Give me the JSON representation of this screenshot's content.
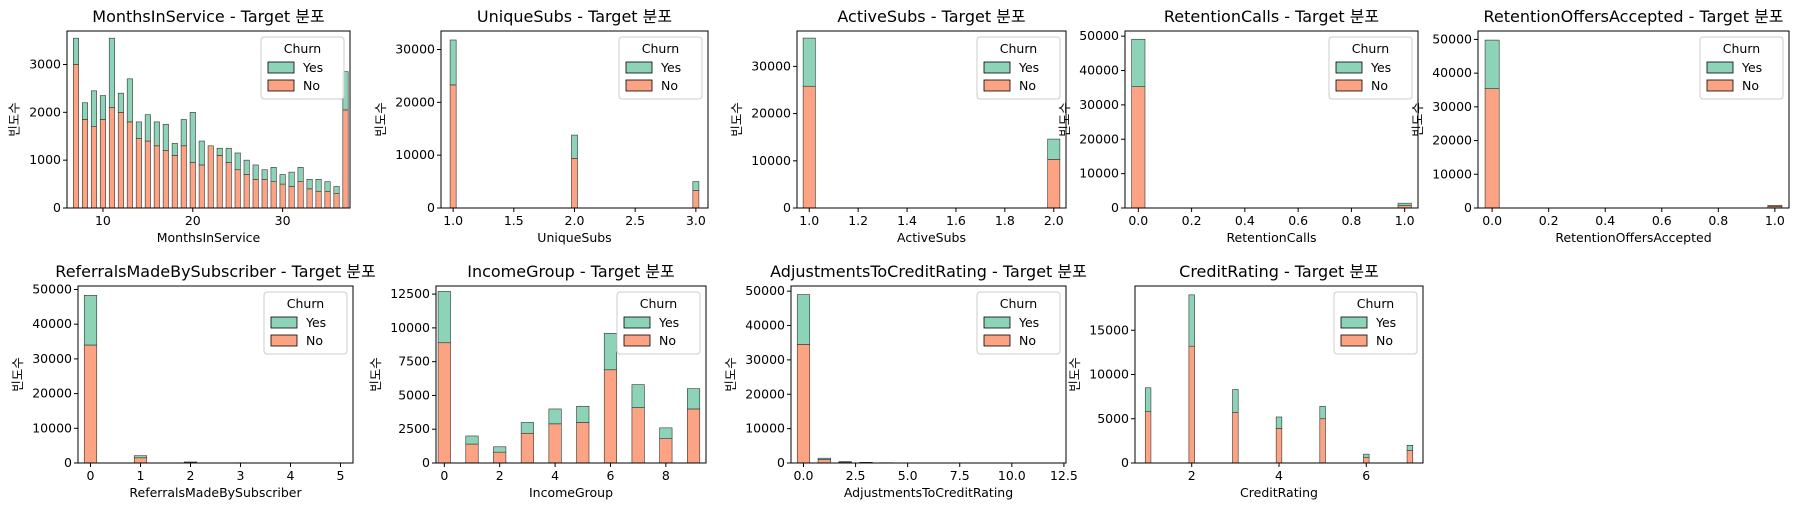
{
  "legend": {
    "title": "Churn",
    "entries": [
      "Yes",
      "No"
    ]
  },
  "colors": {
    "Yes": "#8dd3b8",
    "No": "#fca383"
  },
  "chart_data": [
    {
      "type": "bar",
      "stacked": true,
      "title": "MonthsInService - Target 분포",
      "xlabel": "MonthsInService",
      "ylabel": "빈도수",
      "xlim": [
        6,
        37.5
      ],
      "ylim": [
        0,
        3700
      ],
      "xticks": [
        10,
        20,
        30
      ],
      "yticks": [
        0,
        1000,
        2000,
        3000
      ],
      "bin_width": 0.6,
      "x": [
        7,
        8,
        9,
        10,
        11,
        12,
        13,
        14,
        15,
        16,
        17,
        18,
        19,
        20,
        21,
        22,
        23,
        24,
        25,
        26,
        27,
        28,
        29,
        30,
        31,
        32,
        33,
        34,
        35,
        36,
        37
      ],
      "series": [
        {
          "name": "No",
          "values": [
            3000,
            1850,
            1700,
            1850,
            2100,
            2000,
            1800,
            1450,
            1400,
            1300,
            1200,
            1100,
            1300,
            950,
            900,
            1300,
            1100,
            950,
            800,
            700,
            600,
            600,
            550,
            500,
            450,
            550,
            400,
            350,
            350,
            300,
            2050
          ]
        },
        {
          "name": "Yes",
          "values": [
            550,
            350,
            750,
            500,
            1450,
            400,
            900,
            350,
            550,
            500,
            550,
            250,
            550,
            1050,
            500,
            0,
            150,
            300,
            350,
            300,
            300,
            200,
            300,
            200,
            300,
            300,
            200,
            250,
            200,
            150,
            800
          ]
        }
      ]
    },
    {
      "type": "bar",
      "stacked": true,
      "title": "UniqueSubs - Target 분포",
      "xlabel": "UniqueSubs",
      "ylabel": "빈도수",
      "xlim": [
        0.9,
        3.1
      ],
      "ylim": [
        0,
        33500
      ],
      "xticks": [
        1.0,
        1.5,
        2.0,
        2.5,
        3.0
      ],
      "yticks": [
        0,
        10000,
        20000,
        30000
      ],
      "bin_width": 0.05,
      "x": [
        1,
        2,
        3
      ],
      "series": [
        {
          "name": "No",
          "values": [
            23300,
            9400,
            3300
          ]
        },
        {
          "name": "Yes",
          "values": [
            8500,
            4400,
            1700
          ]
        }
      ]
    },
    {
      "type": "bar",
      "stacked": true,
      "title": "ActiveSubs - Target 분포",
      "xlabel": "ActiveSubs",
      "ylabel": "빈도수",
      "xlim": [
        0.95,
        2.05
      ],
      "ylim": [
        0,
        37500
      ],
      "xticks": [
        1.0,
        1.2,
        1.4,
        1.6,
        1.8,
        2.0
      ],
      "yticks": [
        0,
        10000,
        20000,
        30000
      ],
      "bin_width": 0.05,
      "x": [
        1,
        2
      ],
      "series": [
        {
          "name": "No",
          "values": [
            25800,
            10300
          ]
        },
        {
          "name": "Yes",
          "values": [
            10200,
            4300
          ]
        }
      ]
    },
    {
      "type": "bar",
      "stacked": true,
      "title": "RetentionCalls - Target 분포",
      "xlabel": "RetentionCalls",
      "ylabel": "빈도수",
      "xlim": [
        -0.05,
        1.05
      ],
      "ylim": [
        0,
        51500
      ],
      "xticks": [
        0.0,
        0.2,
        0.4,
        0.6,
        0.8,
        1.0
      ],
      "yticks": [
        0,
        10000,
        20000,
        30000,
        40000,
        50000
      ],
      "bin_width": 0.05,
      "x": [
        0,
        1
      ],
      "series": [
        {
          "name": "No",
          "values": [
            35300,
            700
          ]
        },
        {
          "name": "Yes",
          "values": [
            13800,
            700
          ]
        }
      ]
    },
    {
      "type": "bar",
      "stacked": true,
      "title": "RetentionOffersAccepted - Target 분포",
      "xlabel": "RetentionOffersAccepted",
      "ylabel": "빈도수",
      "xlim": [
        -0.05,
        1.05
      ],
      "ylim": [
        0,
        52500
      ],
      "xticks": [
        0.0,
        0.2,
        0.4,
        0.6,
        0.8,
        1.0
      ],
      "yticks": [
        0,
        10000,
        20000,
        30000,
        40000,
        50000
      ],
      "bin_width": 0.05,
      "x": [
        0,
        1
      ],
      "series": [
        {
          "name": "No",
          "values": [
            35400,
            500
          ]
        },
        {
          "name": "Yes",
          "values": [
            14400,
            300
          ]
        }
      ]
    },
    {
      "type": "bar",
      "stacked": true,
      "title": "ReferralsMadeBySubscriber - Target 분포",
      "xlabel": "ReferralsMadeBySubscriber",
      "ylabel": "빈도수",
      "xlim": [
        -0.25,
        5.25
      ],
      "ylim": [
        0,
        51000
      ],
      "xticks": [
        0,
        1,
        2,
        3,
        4,
        5
      ],
      "yticks": [
        0,
        10000,
        20000,
        30000,
        40000,
        50000
      ],
      "bin_width": 0.25,
      "x": [
        0,
        1,
        2,
        3,
        4,
        5
      ],
      "series": [
        {
          "name": "No",
          "values": [
            34000,
            1500,
            200,
            50,
            20,
            10
          ]
        },
        {
          "name": "Yes",
          "values": [
            14300,
            600,
            100,
            20,
            10,
            5
          ]
        }
      ]
    },
    {
      "type": "bar",
      "stacked": true,
      "title": "IncomeGroup - Target 분포",
      "xlabel": "IncomeGroup",
      "ylabel": "빈도수",
      "xlim": [
        -0.3,
        9.45
      ],
      "ylim": [
        0,
        13100
      ],
      "xticks": [
        0,
        2,
        4,
        6,
        8
      ],
      "yticks": [
        0,
        2500,
        5000,
        7500,
        10000,
        12500
      ],
      "bin_width": 0.45,
      "x": [
        0,
        1,
        2,
        3,
        4,
        5,
        6,
        7,
        8,
        9
      ],
      "series": [
        {
          "name": "No",
          "values": [
            8900,
            1400,
            800,
            2200,
            2900,
            3000,
            6900,
            4100,
            1800,
            4000
          ]
        },
        {
          "name": "Yes",
          "values": [
            3800,
            600,
            400,
            800,
            1100,
            1200,
            2700,
            1700,
            800,
            1500
          ]
        }
      ]
    },
    {
      "type": "bar",
      "stacked": true,
      "title": "AdjustmentsToCreditRating - Target 분포",
      "xlabel": "AdjustmentsToCreditRating",
      "ylabel": "빈도수",
      "xlim": [
        -0.6,
        12.6
      ],
      "ylim": [
        0,
        51500
      ],
      "xticks": [
        0.0,
        2.5,
        5.0,
        7.5,
        10.0,
        12.5
      ],
      "yticks": [
        0,
        10000,
        20000,
        30000,
        40000,
        50000
      ],
      "bin_width": 0.6,
      "x": [
        0,
        1,
        2,
        3,
        4,
        5
      ],
      "series": [
        {
          "name": "No",
          "values": [
            34500,
            1000,
            300,
            150,
            60,
            30
          ]
        },
        {
          "name": "Yes",
          "values": [
            14500,
            400,
            100,
            50,
            20,
            10
          ]
        }
      ]
    },
    {
      "type": "bar",
      "stacked": true,
      "title": "CreditRating - Target 분포",
      "xlabel": "CreditRating",
      "ylabel": "빈도수",
      "xlim": [
        0.7,
        7.3
      ],
      "ylim": [
        0,
        20000
      ],
      "xticks": [
        2,
        4,
        6
      ],
      "yticks": [
        0,
        5000,
        10000,
        15000
      ],
      "bin_width": 0.13,
      "x": [
        1,
        2,
        3,
        4,
        5,
        6,
        7
      ],
      "series": [
        {
          "name": "No",
          "values": [
            5800,
            13200,
            5700,
            3900,
            5000,
            600,
            1400
          ]
        },
        {
          "name": "Yes",
          "values": [
            2700,
            5800,
            2600,
            1300,
            1400,
            400,
            600
          ]
        }
      ]
    }
  ]
}
